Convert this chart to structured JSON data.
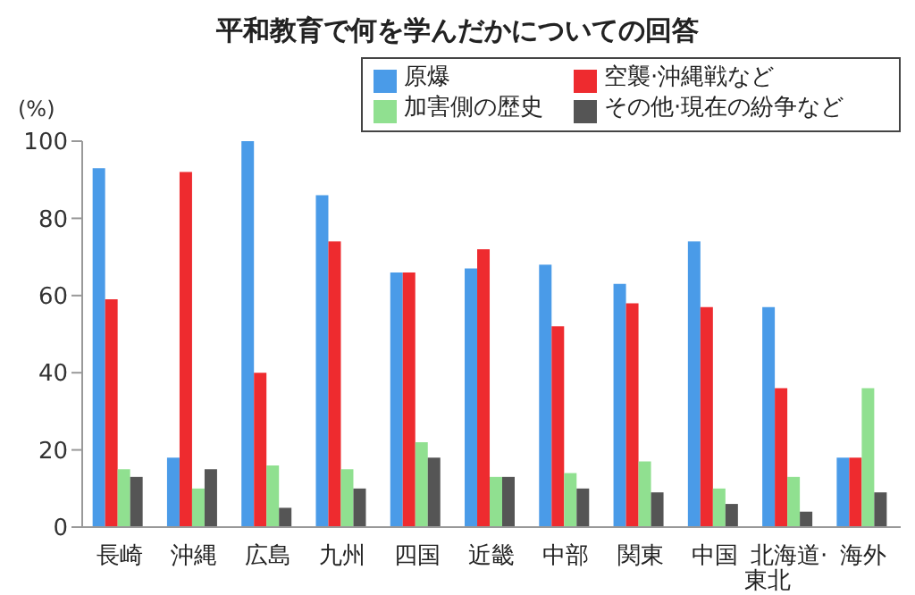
{
  "chart_data": {
    "type": "bar",
    "title": "平和教育で何を学んだかについての回答",
    "ylabel": "(%)",
    "categories": [
      "長崎",
      "沖縄",
      "広島",
      "九州",
      "四国",
      "近畿",
      "中部",
      "関東",
      "中国",
      "北海道·東北",
      "海外"
    ],
    "series": [
      {
        "name": "原爆",
        "color": "#4a9be8",
        "values": [
          93,
          18,
          100,
          86,
          66,
          67,
          68,
          63,
          74,
          57,
          18
        ]
      },
      {
        "name": "空襲·沖縄戦など",
        "color": "#ee2b2f",
        "values": [
          59,
          92,
          40,
          74,
          66,
          72,
          52,
          58,
          57,
          36,
          18
        ]
      },
      {
        "name": "加害側の歴史",
        "color": "#90e090",
        "values": [
          15,
          10,
          16,
          15,
          22,
          13,
          14,
          17,
          10,
          13,
          36
        ]
      },
      {
        "name": "その他·現在の紛争など",
        "color": "#555555",
        "values": [
          13,
          15,
          5,
          10,
          18,
          13,
          10,
          9,
          6,
          4,
          9
        ]
      }
    ],
    "ylim": [
      0,
      100
    ],
    "yticks": [
      0,
      20,
      40,
      60,
      80,
      100
    ],
    "grid": false,
    "legend": "top right"
  }
}
